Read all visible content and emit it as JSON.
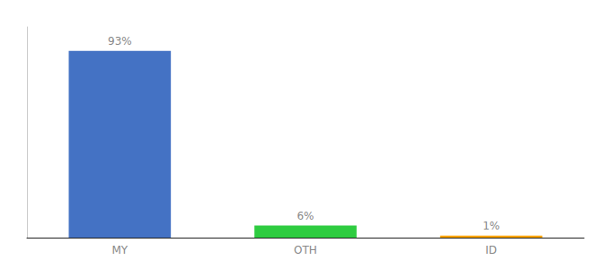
{
  "chart_data": {
    "type": "bar",
    "categories": [
      "MY",
      "OTH",
      "ID"
    ],
    "values": [
      93,
      6,
      1
    ],
    "value_labels": [
      "93%",
      "6%",
      "1%"
    ],
    "colors": [
      "#4472C4",
      "#2ECC40",
      "#FFA500"
    ],
    "ylim": [
      0,
      105
    ],
    "data_labels": true,
    "tick_labels": "x",
    "grid": false
  }
}
